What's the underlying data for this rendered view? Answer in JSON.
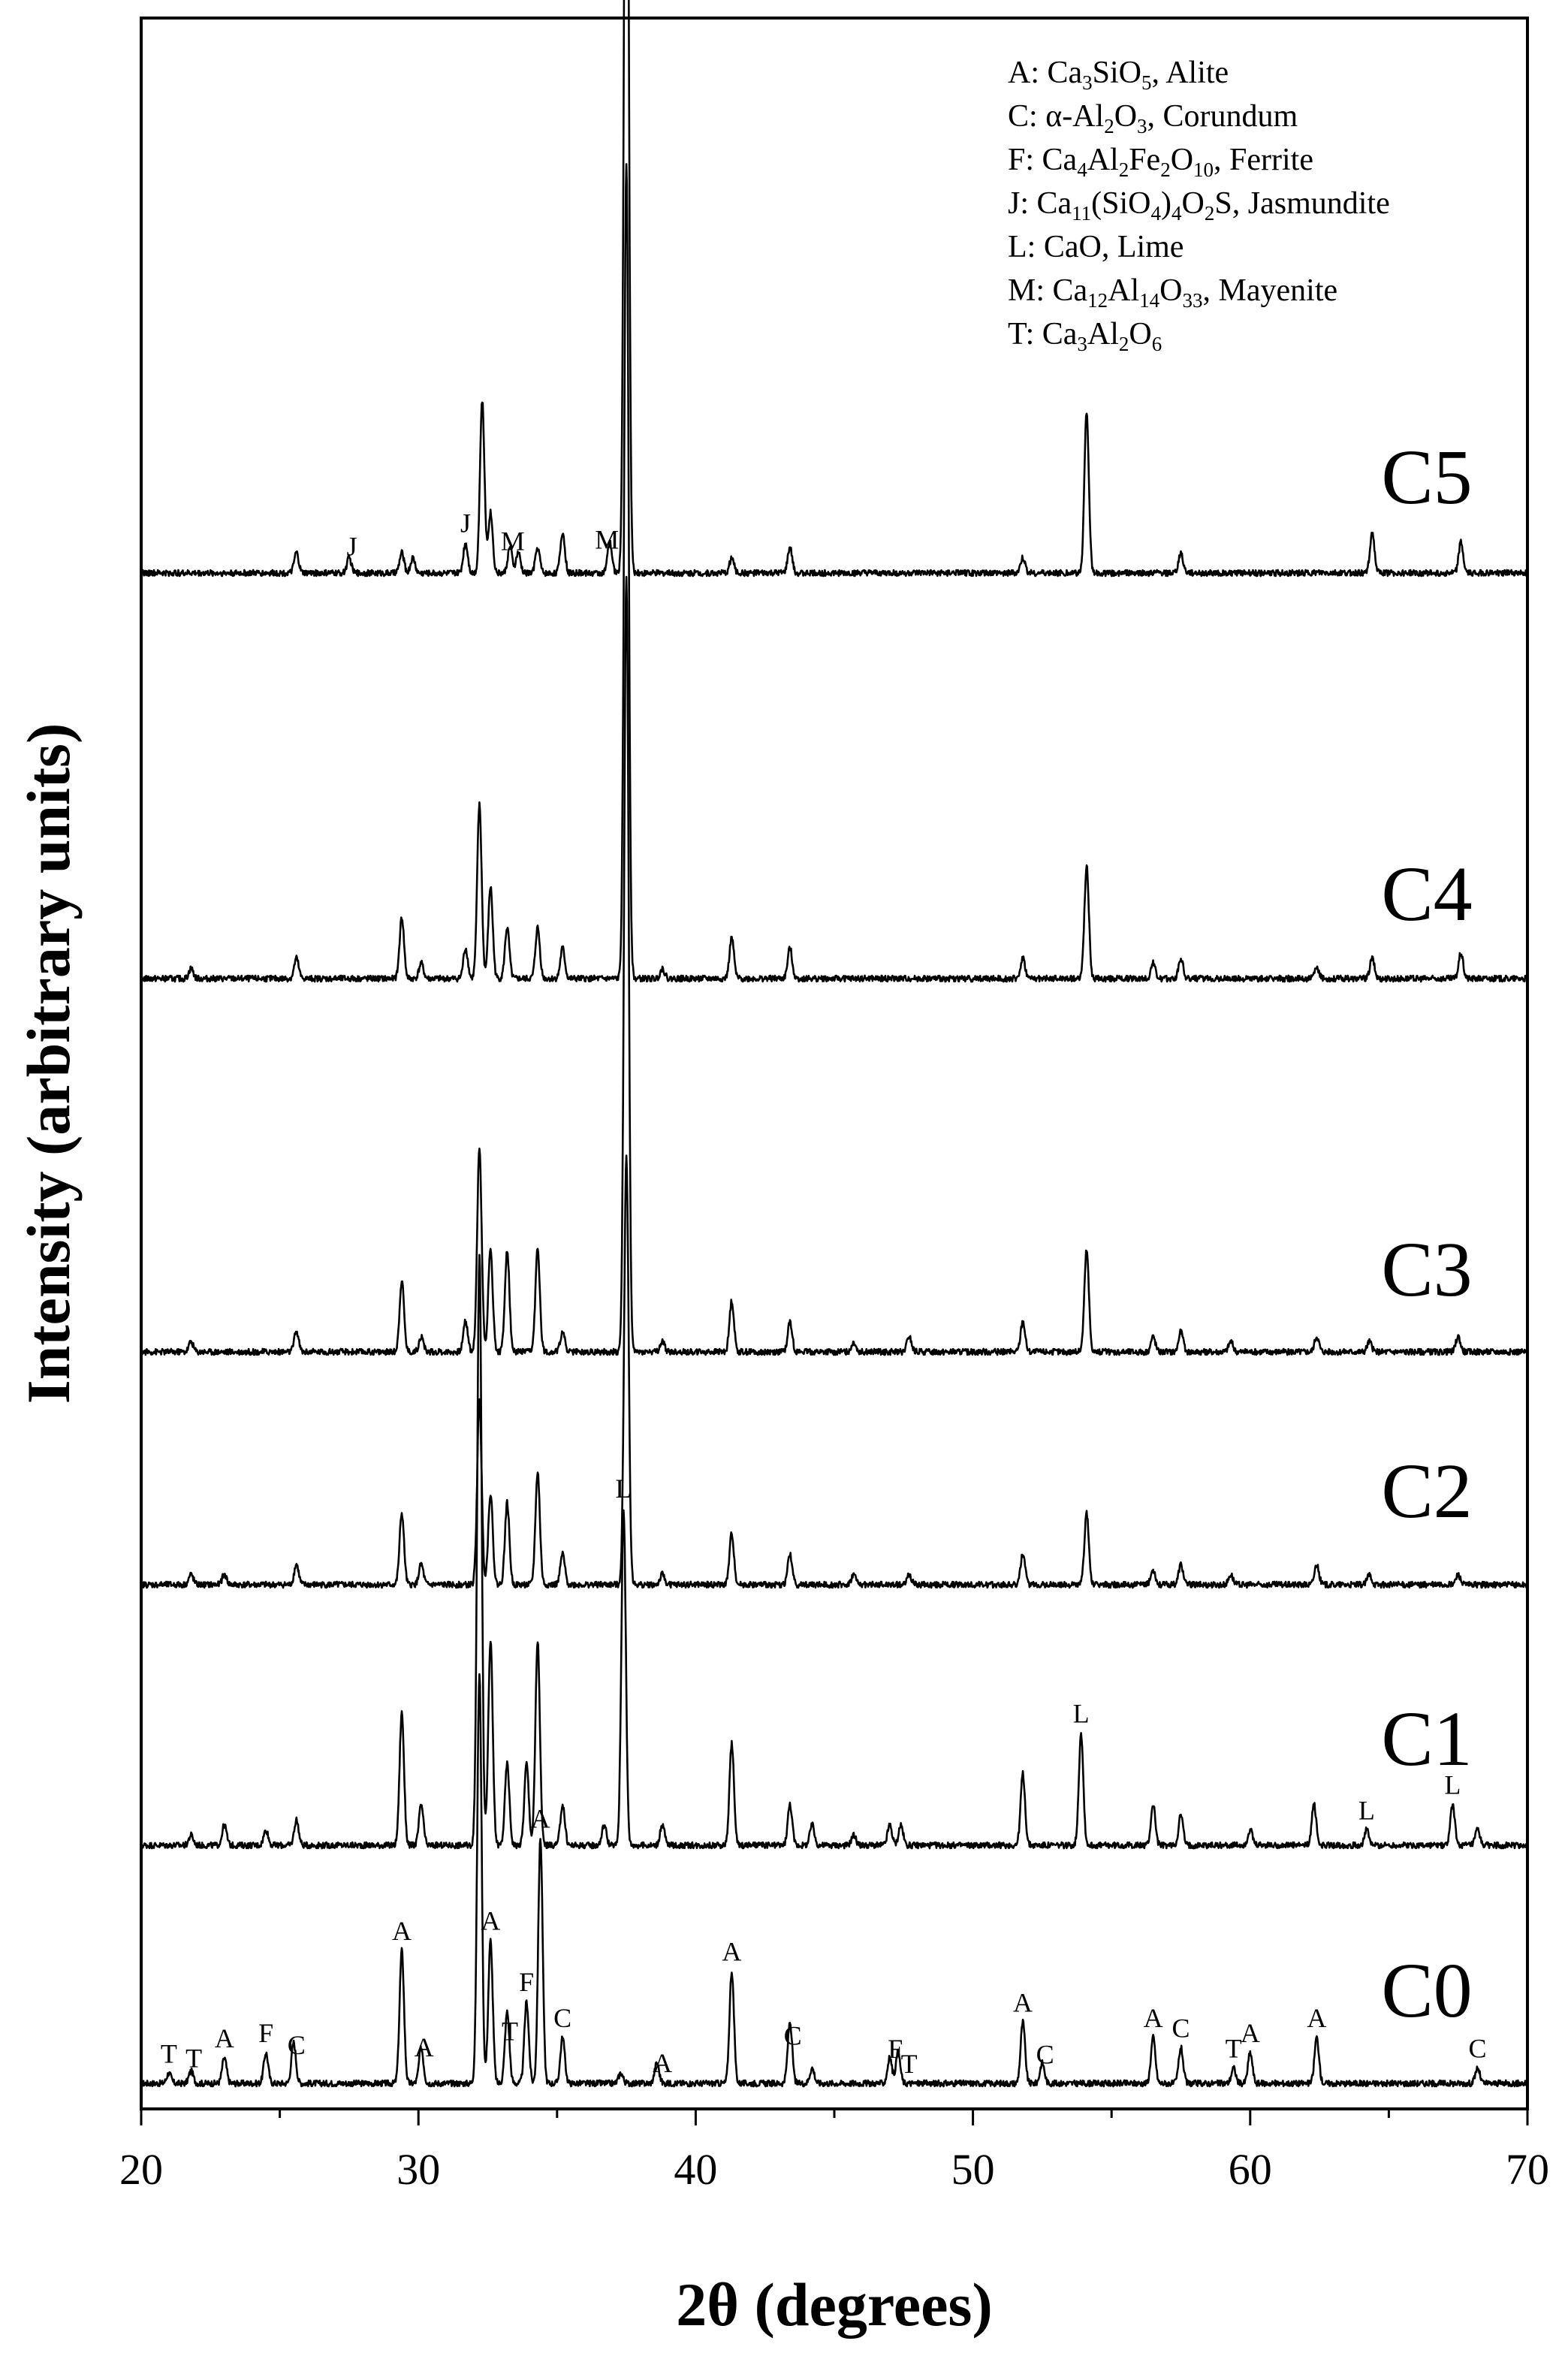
{
  "chart_data": {
    "type": "line",
    "title": "",
    "xlabel": "2θ (degrees)",
    "ylabel": "Intensity (arbitrary units)",
    "xlim": [
      20,
      70
    ],
    "xticks": [
      20,
      30,
      40,
      50,
      60,
      70
    ],
    "yticks": [],
    "grid": false,
    "legend_position": "top-right",
    "legend": [
      {
        "key": "A",
        "parts": [
          [
            "Ca",
            ""
          ],
          [
            "3",
            "sub"
          ],
          [
            "SiO",
            ""
          ],
          [
            "5",
            "sub"
          ],
          [
            ", Alite",
            ""
          ]
        ]
      },
      {
        "key": "C",
        "parts": [
          [
            "α-Al",
            ""
          ],
          [
            "2",
            "sub"
          ],
          [
            "O",
            ""
          ],
          [
            "3",
            "sub"
          ],
          [
            ", Corundum",
            ""
          ]
        ]
      },
      {
        "key": "F",
        "parts": [
          [
            "Ca",
            ""
          ],
          [
            "4",
            "sub"
          ],
          [
            "Al",
            ""
          ],
          [
            "2",
            "sub"
          ],
          [
            "Fe",
            ""
          ],
          [
            "2",
            "sub"
          ],
          [
            "O",
            ""
          ],
          [
            "10",
            "sub"
          ],
          [
            ", Ferrite",
            ""
          ]
        ]
      },
      {
        "key": "J",
        "parts": [
          [
            "Ca",
            ""
          ],
          [
            "11",
            "sub"
          ],
          [
            "(SiO",
            ""
          ],
          [
            "4",
            "sub"
          ],
          [
            ")",
            ""
          ],
          [
            "4",
            "sub"
          ],
          [
            "O",
            ""
          ],
          [
            "2",
            "sub"
          ],
          [
            "S, Jasmundite",
            ""
          ]
        ]
      },
      {
        "key": "L",
        "parts": [
          [
            "CaO, Lime",
            ""
          ]
        ]
      },
      {
        "key": "M",
        "parts": [
          [
            "Ca",
            ""
          ],
          [
            "12",
            "sub"
          ],
          [
            "Al",
            ""
          ],
          [
            "14",
            "sub"
          ],
          [
            "O",
            ""
          ],
          [
            "33",
            "sub"
          ],
          [
            ", Mayenite",
            ""
          ]
        ]
      },
      {
        "key": "T",
        "parts": [
          [
            "Ca",
            ""
          ],
          [
            "3",
            "sub"
          ],
          [
            "Al",
            ""
          ],
          [
            "2",
            "sub"
          ],
          [
            "O",
            ""
          ],
          [
            "6",
            "sub"
          ]
        ]
      }
    ],
    "series": [
      {
        "name": "C0",
        "peaks": [
          [
            21.0,
            0.01
          ],
          [
            21.8,
            0.012
          ],
          [
            23.0,
            0.025
          ],
          [
            24.5,
            0.03
          ],
          [
            25.5,
            0.04
          ],
          [
            29.4,
            0.13
          ],
          [
            30.1,
            0.035
          ],
          [
            32.2,
            0.4
          ],
          [
            32.6,
            0.14
          ],
          [
            33.2,
            0.07
          ],
          [
            33.9,
            0.08
          ],
          [
            34.4,
            0.24
          ],
          [
            35.2,
            0.045
          ],
          [
            37.3,
            0.01
          ],
          [
            38.6,
            0.02
          ],
          [
            41.3,
            0.11
          ],
          [
            43.4,
            0.06
          ],
          [
            44.2,
            0.015
          ],
          [
            47.0,
            0.025
          ],
          [
            47.3,
            0.03
          ],
          [
            51.8,
            0.06
          ],
          [
            52.5,
            0.02
          ],
          [
            56.5,
            0.045
          ],
          [
            57.5,
            0.035
          ],
          [
            59.4,
            0.015
          ],
          [
            60.0,
            0.03
          ],
          [
            62.4,
            0.045
          ],
          [
            68.2,
            0.015
          ]
        ],
        "marks": [
          [
            21.0,
            "T"
          ],
          [
            21.9,
            "T"
          ],
          [
            23.0,
            "A"
          ],
          [
            24.5,
            "F"
          ],
          [
            25.6,
            "C"
          ],
          [
            29.4,
            "A"
          ],
          [
            30.2,
            "A"
          ],
          [
            32.6,
            "A"
          ],
          [
            33.3,
            "T"
          ],
          [
            33.9,
            "F"
          ],
          [
            34.4,
            "A"
          ],
          [
            35.2,
            "C"
          ],
          [
            38.8,
            "A"
          ],
          [
            41.3,
            "A"
          ],
          [
            43.5,
            "C"
          ],
          [
            47.2,
            "F"
          ],
          [
            47.7,
            "T"
          ],
          [
            51.8,
            "A"
          ],
          [
            52.6,
            "C"
          ],
          [
            56.5,
            "A"
          ],
          [
            57.5,
            "C"
          ],
          [
            59.4,
            "T"
          ],
          [
            60.0,
            "A"
          ],
          [
            62.4,
            "A"
          ],
          [
            68.2,
            "C"
          ]
        ]
      },
      {
        "name": "C1",
        "peaks": [
          [
            21.8,
            0.01
          ],
          [
            23.0,
            0.02
          ],
          [
            24.5,
            0.015
          ],
          [
            25.6,
            0.025
          ],
          [
            29.4,
            0.13
          ],
          [
            30.1,
            0.04
          ],
          [
            32.2,
            0.58
          ],
          [
            32.6,
            0.2
          ],
          [
            33.2,
            0.08
          ],
          [
            33.9,
            0.08
          ],
          [
            34.3,
            0.2
          ],
          [
            35.2,
            0.04
          ],
          [
            36.7,
            0.02
          ],
          [
            37.4,
            0.33
          ],
          [
            38.8,
            0.02
          ],
          [
            41.3,
            0.1
          ],
          [
            43.4,
            0.04
          ],
          [
            44.2,
            0.02
          ],
          [
            45.7,
            0.01
          ],
          [
            47.0,
            0.02
          ],
          [
            47.4,
            0.02
          ],
          [
            51.8,
            0.07
          ],
          [
            53.9,
            0.11
          ],
          [
            56.5,
            0.04
          ],
          [
            57.5,
            0.03
          ],
          [
            60.0,
            0.015
          ],
          [
            62.3,
            0.04
          ],
          [
            64.2,
            0.015
          ],
          [
            67.3,
            0.04
          ],
          [
            68.2,
            0.015
          ]
        ],
        "marks": [
          [
            37.4,
            "L"
          ],
          [
            53.9,
            "L"
          ],
          [
            64.2,
            "L"
          ],
          [
            67.3,
            "L"
          ]
        ]
      },
      {
        "name": "C2",
        "peaks": [
          [
            21.8,
            0.01
          ],
          [
            23.0,
            0.01
          ],
          [
            25.6,
            0.02
          ],
          [
            29.4,
            0.07
          ],
          [
            30.1,
            0.02
          ],
          [
            32.2,
            0.18
          ],
          [
            32.6,
            0.09
          ],
          [
            33.2,
            0.08
          ],
          [
            34.3,
            0.11
          ],
          [
            35.2,
            0.03
          ],
          [
            37.5,
            0.42
          ],
          [
            38.8,
            0.01
          ],
          [
            41.3,
            0.05
          ],
          [
            43.4,
            0.03
          ],
          [
            45.7,
            0.01
          ],
          [
            47.7,
            0.01
          ],
          [
            51.8,
            0.03
          ],
          [
            54.1,
            0.07
          ],
          [
            56.5,
            0.015
          ],
          [
            57.5,
            0.02
          ],
          [
            59.3,
            0.01
          ],
          [
            62.4,
            0.02
          ],
          [
            64.3,
            0.01
          ],
          [
            67.5,
            0.01
          ]
        ],
        "marks": []
      },
      {
        "name": "C3",
        "peaks": [
          [
            21.8,
            0.01
          ],
          [
            25.6,
            0.02
          ],
          [
            29.4,
            0.07
          ],
          [
            30.1,
            0.015
          ],
          [
            31.7,
            0.03
          ],
          [
            32.2,
            0.2
          ],
          [
            32.6,
            0.1
          ],
          [
            33.2,
            0.1
          ],
          [
            34.3,
            0.1
          ],
          [
            35.2,
            0.02
          ],
          [
            37.5,
            0.76
          ],
          [
            38.8,
            0.01
          ],
          [
            41.3,
            0.05
          ],
          [
            43.4,
            0.03
          ],
          [
            45.7,
            0.01
          ],
          [
            47.7,
            0.015
          ],
          [
            51.8,
            0.03
          ],
          [
            54.1,
            0.1
          ],
          [
            56.5,
            0.015
          ],
          [
            57.5,
            0.02
          ],
          [
            59.3,
            0.01
          ],
          [
            62.4,
            0.015
          ],
          [
            64.3,
            0.01
          ],
          [
            67.5,
            0.015
          ]
        ],
        "marks": []
      },
      {
        "name": "C4",
        "peaks": [
          [
            21.8,
            0.01
          ],
          [
            25.6,
            0.02
          ],
          [
            29.4,
            0.06
          ],
          [
            30.1,
            0.015
          ],
          [
            31.7,
            0.03
          ],
          [
            32.2,
            0.17
          ],
          [
            32.6,
            0.09
          ],
          [
            33.2,
            0.05
          ],
          [
            34.3,
            0.05
          ],
          [
            35.2,
            0.03
          ],
          [
            37.5,
            0.8
          ],
          [
            38.8,
            0.01
          ],
          [
            41.3,
            0.04
          ],
          [
            43.4,
            0.03
          ],
          [
            51.8,
            0.02
          ],
          [
            54.1,
            0.11
          ],
          [
            56.5,
            0.015
          ],
          [
            57.5,
            0.02
          ],
          [
            62.4,
            0.01
          ],
          [
            64.4,
            0.02
          ],
          [
            67.6,
            0.025
          ]
        ],
        "marks": []
      },
      {
        "name": "C5",
        "peaks": [
          [
            25.6,
            0.02
          ],
          [
            27.5,
            0.015
          ],
          [
            29.4,
            0.02
          ],
          [
            29.8,
            0.015
          ],
          [
            31.7,
            0.03
          ],
          [
            32.3,
            0.17
          ],
          [
            32.6,
            0.06
          ],
          [
            33.3,
            0.025
          ],
          [
            33.6,
            0.02
          ],
          [
            34.3,
            0.025
          ],
          [
            35.2,
            0.04
          ],
          [
            36.9,
            0.03
          ],
          [
            37.5,
            1.0
          ],
          [
            41.3,
            0.015
          ],
          [
            43.4,
            0.025
          ],
          [
            51.8,
            0.015
          ],
          [
            54.1,
            0.16
          ],
          [
            57.5,
            0.02
          ],
          [
            64.4,
            0.04
          ],
          [
            67.6,
            0.03
          ]
        ],
        "marks": [
          [
            27.6,
            "J"
          ],
          [
            31.7,
            "J"
          ],
          [
            33.4,
            "M"
          ],
          [
            36.8,
            "M"
          ]
        ]
      }
    ]
  }
}
